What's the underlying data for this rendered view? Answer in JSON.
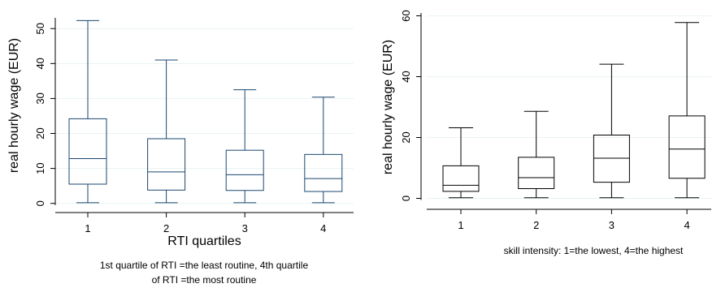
{
  "chart_data": [
    {
      "type": "box",
      "ylabel": "real hourly wage (EUR)",
      "xlabel": "RTI quartiles",
      "note": "1st quartile of RTI =the least routine, 4th quartile of RTI =the most routine",
      "note_lines": [
        "1st quartile of RTI =the least routine, 4th quartile",
        "of RTI =the most routine"
      ],
      "categories": [
        "1",
        "2",
        "3",
        "4"
      ],
      "ylim": [
        -1,
        54
      ],
      "yticks": [
        0,
        10,
        20,
        30,
        40,
        50
      ],
      "ytick_labels": [
        "0",
        "10",
        "20",
        "30",
        "40",
        "50"
      ],
      "grid": true,
      "colors": {
        "box": "#1a476f",
        "grid": "#eaf2f3"
      },
      "boxes": [
        {
          "category": "1",
          "whisker_low": 0.2,
          "q1": 5.5,
          "median": 12.8,
          "q3": 24.2,
          "whisker_high": 52.3
        },
        {
          "category": "2",
          "whisker_low": 0.2,
          "q1": 3.8,
          "median": 9.0,
          "q3": 18.5,
          "whisker_high": 41.0
        },
        {
          "category": "3",
          "whisker_low": 0.2,
          "q1": 3.7,
          "median": 8.2,
          "q3": 15.2,
          "whisker_high": 32.5
        },
        {
          "category": "4",
          "whisker_low": 0.2,
          "q1": 3.4,
          "median": 7.1,
          "q3": 14.0,
          "whisker_high": 30.4
        }
      ]
    },
    {
      "type": "box",
      "ylabel": "real hourly wage (EUR)",
      "xlabel": "",
      "note": "skill intensity: 1=the lowest, 4=the highest",
      "note_lines": [
        "skill intensity: 1=the lowest, 4=the highest"
      ],
      "categories": [
        "1",
        "2",
        "3",
        "4"
      ],
      "ylim": [
        -2,
        62
      ],
      "yticks": [
        0,
        20,
        40,
        60
      ],
      "ytick_labels": [
        "0",
        "20",
        "40",
        "60"
      ],
      "grid": true,
      "colors": {
        "box": "#000000",
        "grid": "#eaf2f3"
      },
      "boxes": [
        {
          "category": "1",
          "whisker_low": 0.2,
          "q1": 2.3,
          "median": 4.3,
          "q3": 10.7,
          "whisker_high": 23.2
        },
        {
          "category": "2",
          "whisker_low": 0.2,
          "q1": 3.2,
          "median": 6.8,
          "q3": 13.5,
          "whisker_high": 28.6
        },
        {
          "category": "3",
          "whisker_low": 0.2,
          "q1": 5.3,
          "median": 13.2,
          "q3": 20.8,
          "whisker_high": 44.1
        },
        {
          "category": "4",
          "whisker_low": 0.2,
          "q1": 6.6,
          "median": 16.2,
          "q3": 27.1,
          "whisker_high": 57.8
        }
      ]
    }
  ]
}
